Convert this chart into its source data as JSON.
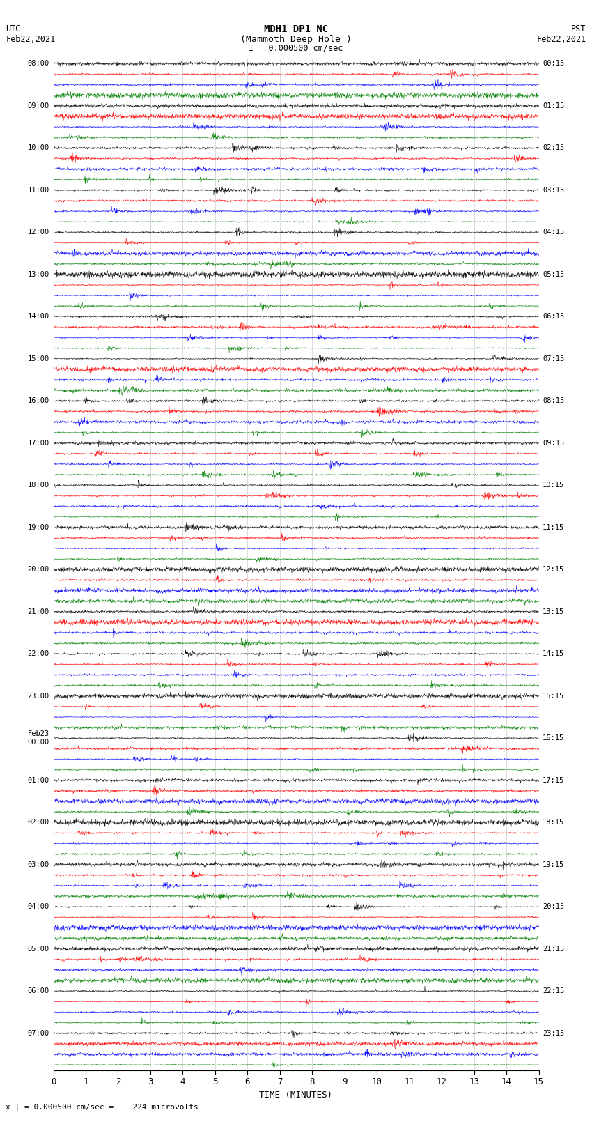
{
  "title_line1": "MDH1 DP1 NC",
  "title_line2": "(Mammoth Deep Hole )",
  "title_line3": "I = 0.000500 cm/sec",
  "top_left_label": "UTC\nFeb22,2021",
  "top_right_label": "PST\nFeb22,2021",
  "bottom_label": "x | = 0.000500 cm/sec =    224 microvolts",
  "xlabel": "TIME (MINUTES)",
  "left_times": [
    "08:00",
    "09:00",
    "10:00",
    "11:00",
    "12:00",
    "13:00",
    "14:00",
    "15:00",
    "16:00",
    "17:00",
    "18:00",
    "19:00",
    "20:00",
    "21:00",
    "22:00",
    "23:00",
    "Feb23\n00:00",
    "01:00",
    "02:00",
    "03:00",
    "04:00",
    "05:00",
    "06:00",
    "07:00"
  ],
  "right_times": [
    "00:15",
    "01:15",
    "02:15",
    "03:15",
    "04:15",
    "05:15",
    "06:15",
    "07:15",
    "08:15",
    "09:15",
    "10:15",
    "11:15",
    "12:15",
    "13:15",
    "14:15",
    "15:15",
    "16:15",
    "17:15",
    "18:15",
    "19:15",
    "20:15",
    "21:15",
    "22:15",
    "23:15"
  ],
  "num_rows": 96,
  "row_colors": [
    "black",
    "red",
    "blue",
    "green"
  ],
  "bg_color": "white",
  "xlim": [
    0,
    15
  ],
  "xticks": [
    0,
    1,
    2,
    3,
    4,
    5,
    6,
    7,
    8,
    9,
    10,
    11,
    12,
    13,
    14,
    15
  ],
  "figsize": [
    8.5,
    16.13
  ],
  "dpi": 100,
  "transition_row": 56,
  "amp_early_base": 0.28,
  "amp_late_base": 0.42
}
